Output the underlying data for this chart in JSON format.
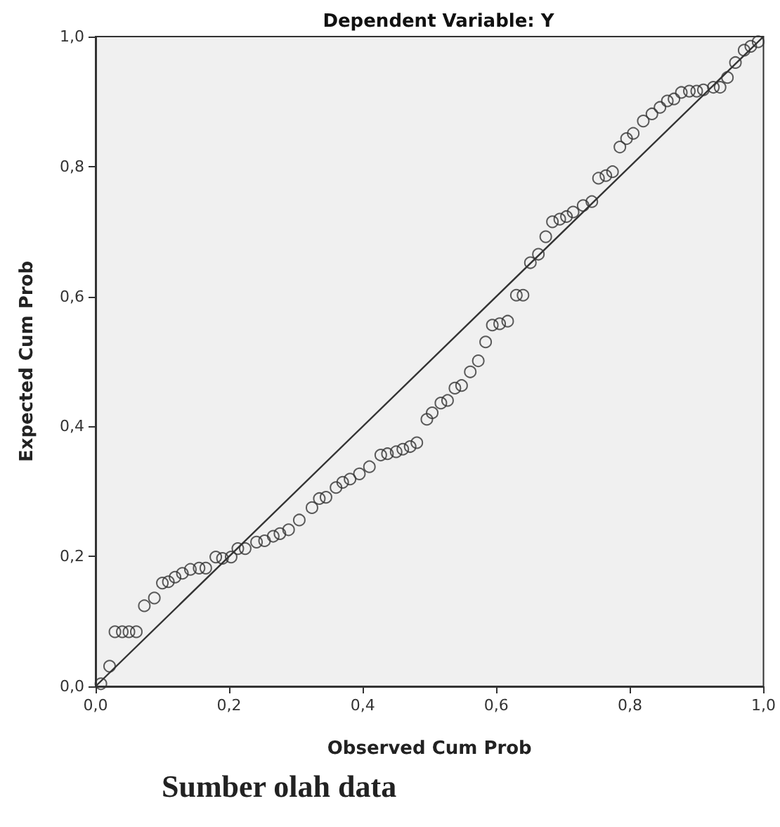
{
  "chart_data": {
    "type": "scatter",
    "title": "Dependent Variable: Y",
    "xlabel": "Observed Cum Prob",
    "ylabel": "Expected Cum Prob",
    "annotations": [
      "Sumber olah data"
    ],
    "xlim": [
      0,
      1
    ],
    "ylim": [
      0,
      1
    ],
    "xticks": [
      {
        "value": 0,
        "label": "0,0"
      },
      {
        "value": 0.2,
        "label": "0,2"
      },
      {
        "value": 0.4,
        "label": "0,4"
      },
      {
        "value": 0.6,
        "label": "0,6"
      },
      {
        "value": 0.8,
        "label": "0,8"
      },
      {
        "value": 1,
        "label": "1,0"
      }
    ],
    "yticks": [
      {
        "value": 0,
        "label": "0,0"
      },
      {
        "value": 0.2,
        "label": "0,2"
      },
      {
        "value": 0.4,
        "label": "0,4"
      },
      {
        "value": 0.6,
        "label": "0,6"
      },
      {
        "value": 0.8,
        "label": "0,8"
      },
      {
        "value": 1,
        "label": "1,0"
      }
    ],
    "marker": "circle",
    "series": [
      {
        "color": "#333333",
        "x": [
          0.008,
          0.021,
          0.029,
          0.04,
          0.05,
          0.061,
          0.073,
          0.088,
          0.1,
          0.109,
          0.119,
          0.13,
          0.142,
          0.155,
          0.165,
          0.18,
          0.19,
          0.203,
          0.213,
          0.224,
          0.241,
          0.253,
          0.266,
          0.276,
          0.289,
          0.305,
          0.324,
          0.335,
          0.345,
          0.36,
          0.37,
          0.381,
          0.395,
          0.41,
          0.427,
          0.437,
          0.45,
          0.46,
          0.471,
          0.481,
          0.496,
          0.504,
          0.517,
          0.527,
          0.538,
          0.548,
          0.561,
          0.573,
          0.584,
          0.594,
          0.605,
          0.617,
          0.63,
          0.64,
          0.651,
          0.663,
          0.674,
          0.684,
          0.695,
          0.705,
          0.715,
          0.73,
          0.743,
          0.753,
          0.764,
          0.774,
          0.785,
          0.795,
          0.805,
          0.82,
          0.833,
          0.845,
          0.856,
          0.866,
          0.877,
          0.889,
          0.9,
          0.91,
          0.925,
          0.935,
          0.946,
          0.958,
          0.971,
          0.981,
          0.992
        ],
        "values": [
          0.004,
          0.031,
          0.084,
          0.084,
          0.084,
          0.084,
          0.124,
          0.136,
          0.159,
          0.161,
          0.168,
          0.174,
          0.18,
          0.182,
          0.182,
          0.199,
          0.197,
          0.199,
          0.212,
          0.212,
          0.222,
          0.224,
          0.231,
          0.235,
          0.241,
          0.256,
          0.275,
          0.289,
          0.291,
          0.306,
          0.314,
          0.319,
          0.327,
          0.338,
          0.356,
          0.358,
          0.361,
          0.365,
          0.369,
          0.375,
          0.411,
          0.421,
          0.436,
          0.44,
          0.459,
          0.463,
          0.484,
          0.501,
          0.53,
          0.556,
          0.558,
          0.562,
          0.602,
          0.602,
          0.652,
          0.665,
          0.692,
          0.715,
          0.719,
          0.723,
          0.73,
          0.74,
          0.746,
          0.782,
          0.786,
          0.792,
          0.83,
          0.843,
          0.851,
          0.87,
          0.881,
          0.891,
          0.901,
          0.904,
          0.914,
          0.916,
          0.916,
          0.918,
          0.922,
          0.922,
          0.937,
          0.96,
          0.979,
          0.985,
          0.992
        ]
      },
      {
        "type": "line",
        "color": "#333333",
        "marker": "none",
        "x": [
          0,
          1
        ],
        "values": [
          0,
          1
        ]
      }
    ]
  }
}
